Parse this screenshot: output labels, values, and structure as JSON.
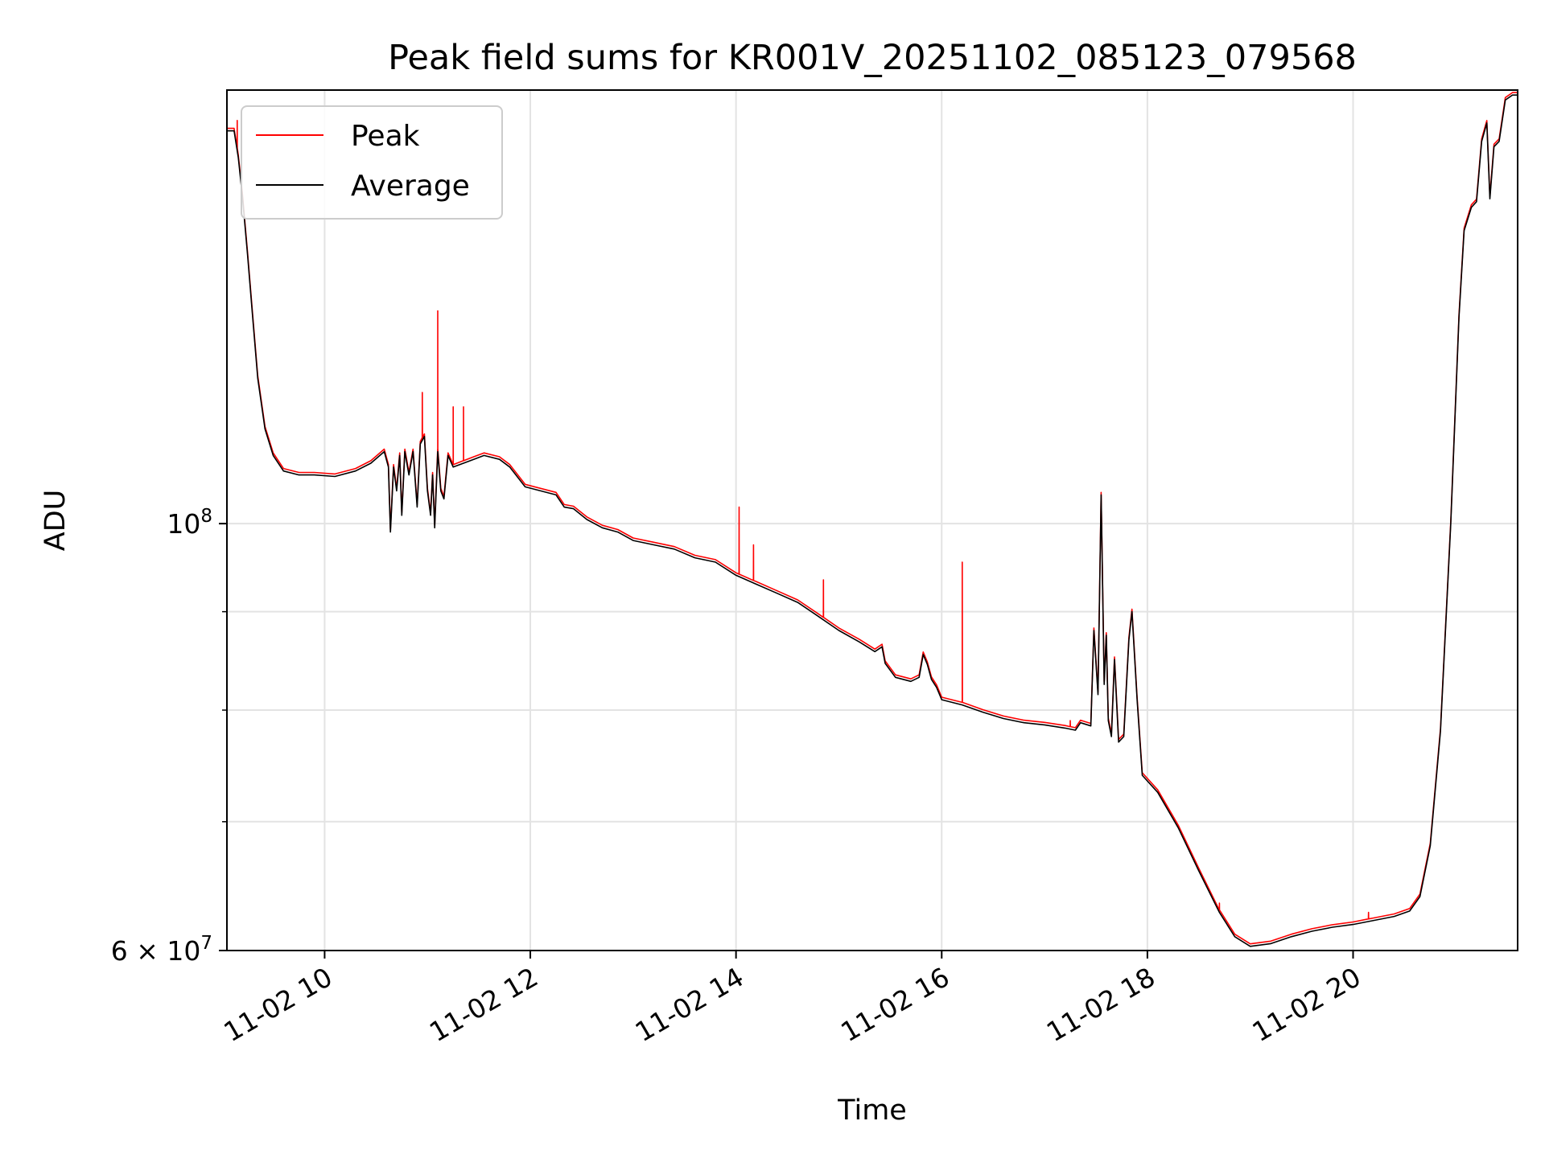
{
  "chart_data": {
    "type": "line",
    "title": "Peak field sums for KR001V_20251102_085123_079568",
    "xlabel": "Time",
    "ylabel": "ADU",
    "x_unit": "hours (clock time on 2025-11-02)",
    "xlim": [
      9.05,
      21.6
    ],
    "ylim": [
      60000000,
      168000000
    ],
    "yscale": "log",
    "grid": true,
    "legend_position": "top-left",
    "x_ticks": [
      {
        "value": 10,
        "label": "11-02 10"
      },
      {
        "value": 12,
        "label": "11-02 12"
      },
      {
        "value": 14,
        "label": "11-02 14"
      },
      {
        "value": 16,
        "label": "11-02 16"
      },
      {
        "value": 18,
        "label": "11-02 18"
      },
      {
        "value": 20,
        "label": "11-02 20"
      }
    ],
    "y_major_ticks": [
      {
        "value": 60000000,
        "label": "6 × 10",
        "exponent": "7"
      },
      {
        "value": 100000000,
        "label": "10",
        "exponent": "8"
      }
    ],
    "y_minor_ticks": [
      70000000,
      80000000,
      90000000
    ],
    "series": [
      {
        "name": "Peak",
        "color": "#ff0000",
        "spikes": [
          [
            9.15,
            162000000
          ],
          [
            10.95,
            117000000
          ],
          [
            11.1,
            129000000
          ],
          [
            11.25,
            115000000
          ],
          [
            11.35,
            115000000
          ],
          [
            14.03,
            102000000
          ],
          [
            14.17,
            97500000
          ],
          [
            14.85,
            93500000
          ],
          [
            16.2,
            95500000
          ],
          [
            17.25,
            79000000
          ],
          [
            18.7,
            63500000
          ],
          [
            20.15,
            62800000
          ]
        ]
      },
      {
        "name": "Average",
        "color": "#000000",
        "points": [
          [
            9.05,
            160000000
          ],
          [
            9.12,
            160000000
          ],
          [
            9.16,
            155000000
          ],
          [
            9.2,
            148000000
          ],
          [
            9.25,
            138000000
          ],
          [
            9.3,
            128000000
          ],
          [
            9.35,
            119000000
          ],
          [
            9.42,
            112000000
          ],
          [
            9.5,
            108500000
          ],
          [
            9.6,
            106500000
          ],
          [
            9.75,
            106000000
          ],
          [
            9.9,
            106000000
          ],
          [
            10.1,
            105800000
          ],
          [
            10.3,
            106500000
          ],
          [
            10.45,
            107500000
          ],
          [
            10.58,
            109000000
          ],
          [
            10.62,
            107000000
          ],
          [
            10.64,
            99000000
          ],
          [
            10.67,
            107000000
          ],
          [
            10.7,
            104000000
          ],
          [
            10.73,
            108500000
          ],
          [
            10.75,
            101000000
          ],
          [
            10.78,
            109000000
          ],
          [
            10.82,
            106000000
          ],
          [
            10.86,
            109000000
          ],
          [
            10.9,
            102000000
          ],
          [
            10.93,
            110000000
          ],
          [
            10.97,
            111000000
          ],
          [
            11.0,
            104000000
          ],
          [
            11.03,
            101000000
          ],
          [
            11.05,
            106000000
          ],
          [
            11.07,
            99500000
          ],
          [
            11.1,
            109000000
          ],
          [
            11.13,
            104000000
          ],
          [
            11.16,
            103000000
          ],
          [
            11.2,
            108500000
          ],
          [
            11.25,
            107000000
          ],
          [
            11.35,
            107500000
          ],
          [
            11.45,
            108000000
          ],
          [
            11.55,
            108500000
          ],
          [
            11.7,
            108000000
          ],
          [
            11.8,
            107000000
          ],
          [
            11.95,
            104500000
          ],
          [
            12.1,
            104000000
          ],
          [
            12.25,
            103500000
          ],
          [
            12.33,
            102000000
          ],
          [
            12.42,
            101800000
          ],
          [
            12.55,
            100500000
          ],
          [
            12.7,
            99500000
          ],
          [
            12.85,
            99000000
          ],
          [
            13.0,
            98000000
          ],
          [
            13.2,
            97500000
          ],
          [
            13.4,
            97000000
          ],
          [
            13.6,
            96000000
          ],
          [
            13.8,
            95500000
          ],
          [
            14.0,
            94000000
          ],
          [
            14.2,
            93000000
          ],
          [
            14.4,
            92000000
          ],
          [
            14.6,
            91000000
          ],
          [
            14.8,
            89500000
          ],
          [
            15.0,
            88000000
          ],
          [
            15.2,
            86800000
          ],
          [
            15.35,
            85800000
          ],
          [
            15.42,
            86300000
          ],
          [
            15.45,
            84600000
          ],
          [
            15.55,
            83200000
          ],
          [
            15.7,
            82800000
          ],
          [
            15.78,
            83200000
          ],
          [
            15.82,
            85500000
          ],
          [
            15.86,
            84500000
          ],
          [
            15.9,
            83000000
          ],
          [
            15.95,
            82200000
          ],
          [
            16.0,
            81000000
          ],
          [
            16.2,
            80500000
          ],
          [
            16.4,
            79800000
          ],
          [
            16.6,
            79200000
          ],
          [
            16.8,
            78800000
          ],
          [
            17.0,
            78600000
          ],
          [
            17.2,
            78300000
          ],
          [
            17.3,
            78100000
          ],
          [
            17.35,
            78800000
          ],
          [
            17.45,
            78500000
          ],
          [
            17.48,
            88000000
          ],
          [
            17.52,
            81500000
          ],
          [
            17.55,
            103500000
          ],
          [
            17.58,
            82500000
          ],
          [
            17.6,
            87500000
          ],
          [
            17.62,
            79000000
          ],
          [
            17.65,
            77500000
          ],
          [
            17.68,
            85000000
          ],
          [
            17.72,
            77000000
          ],
          [
            17.77,
            77500000
          ],
          [
            17.82,
            87000000
          ],
          [
            17.85,
            90000000
          ],
          [
            17.9,
            81000000
          ],
          [
            17.95,
            74000000
          ],
          [
            18.1,
            72500000
          ],
          [
            18.3,
            69500000
          ],
          [
            18.5,
            66000000
          ],
          [
            18.7,
            62800000
          ],
          [
            18.85,
            61000000
          ],
          [
            19.0,
            60300000
          ],
          [
            19.2,
            60500000
          ],
          [
            19.4,
            61000000
          ],
          [
            19.6,
            61400000
          ],
          [
            19.8,
            61700000
          ],
          [
            20.0,
            61900000
          ],
          [
            20.2,
            62200000
          ],
          [
            20.4,
            62500000
          ],
          [
            20.55,
            62900000
          ],
          [
            20.65,
            64000000
          ],
          [
            20.75,
            68000000
          ],
          [
            20.85,
            78000000
          ],
          [
            20.95,
            100000000
          ],
          [
            21.03,
            128000000
          ],
          [
            21.08,
            142000000
          ],
          [
            21.15,
            146000000
          ],
          [
            21.2,
            147000000
          ],
          [
            21.25,
            158000000
          ],
          [
            21.3,
            161500000
          ],
          [
            21.33,
            147500000
          ],
          [
            21.37,
            157000000
          ],
          [
            21.42,
            158000000
          ],
          [
            21.48,
            166000000
          ],
          [
            21.55,
            167000000
          ],
          [
            21.6,
            167000000
          ]
        ]
      }
    ]
  }
}
